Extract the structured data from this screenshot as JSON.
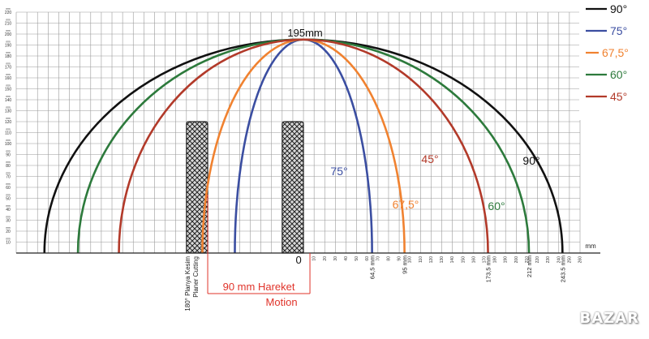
{
  "watermark": "BAZAR",
  "chart_data": {
    "type": "line",
    "title": "195mm",
    "x_unit": "mm",
    "xlim": [
      -270,
      260
    ],
    "ylim": [
      0,
      220
    ],
    "x_ticks": [
      10,
      20,
      30,
      40,
      50,
      60,
      70,
      80,
      90,
      100,
      110,
      120,
      130,
      140,
      150,
      160,
      170,
      180,
      190,
      200,
      210,
      220,
      230,
      240,
      250,
      260
    ],
    "y_ticks": [
      10,
      20,
      30,
      40,
      50,
      60,
      70,
      80,
      90,
      100,
      110,
      120,
      130,
      140,
      150,
      160,
      170,
      180,
      190,
      200,
      210,
      220
    ],
    "y_tick_unit": "mm",
    "origin_label": "0",
    "peak_y": 195,
    "legend_position": "top-right",
    "series": [
      {
        "name": "90°",
        "label": "90°",
        "color": "#111111",
        "x_left": -243.5,
        "x_right": 243.5,
        "end_label": "243.5 mm"
      },
      {
        "name": "75°",
        "label": "75°",
        "color": "#3b4ea1",
        "x_left": -64.5,
        "x_right": 64.5,
        "end_label": "64,5 mm"
      },
      {
        "name": "67,5°",
        "label": "67,5°",
        "color": "#f08230",
        "x_left": -95,
        "x_right": 95,
        "end_label": "95 mm"
      },
      {
        "name": "60°",
        "label": "60°",
        "color": "#2d7a3c",
        "x_left": -212,
        "x_right": 212,
        "end_label": "212 mm"
      },
      {
        "name": "45°",
        "label": "45°",
        "color": "#b23a2a",
        "x_left": -173.5,
        "x_right": 173.5,
        "end_label": "173,5 mm"
      }
    ],
    "blocks": [
      {
        "x_from": -110,
        "x_to": -90,
        "height": 120
      },
      {
        "x_from": -20,
        "x_to": 0,
        "height": 120
      }
    ],
    "annotations": {
      "left_rotated": [
        "180° Planya Kesim",
        "Planer Cutting"
      ],
      "motion_line1": "90 mm Hareket",
      "motion_line2": "Motion",
      "motion_x_from": -90,
      "motion_x_to": 0
    }
  }
}
